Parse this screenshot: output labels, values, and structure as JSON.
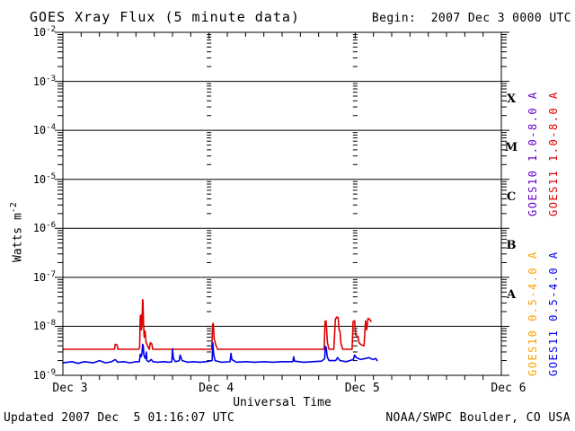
{
  "title": "GOES Xray Flux (5 minute data)",
  "begin_label": "Begin:  2007 Dec 3 0000 UTC",
  "footer": {
    "updated": "Updated 2007 Dec  5 01:16:07 UTC",
    "source": "NOAA/SWPC Boulder, CO USA"
  },
  "axes": {
    "xlabel": "Universal Time",
    "ylabel_base": "Watts m",
    "ylabel_exp": "-2",
    "y_tick_base": "10",
    "y_exponents": [
      "-2",
      "-3",
      "-4",
      "-5",
      "-6",
      "-7",
      "-8",
      "-9"
    ]
  },
  "colors": {
    "long10": "#6600cc",
    "long11": "#dd0000",
    "short10": "#ffa000",
    "short11": "#0000ee",
    "axis": "#000000",
    "background": "#ffffff"
  },
  "legend": {
    "items": [
      {
        "label": "GOES10 1.0-8.0 A",
        "color_key": "long10",
        "column": 1,
        "group": "top"
      },
      {
        "label": "GOES11 1.0-8.0 A",
        "color_key": "long11",
        "column": 2,
        "group": "top"
      },
      {
        "label": "GOES10 0.5-4.0 A",
        "color_key": "short10",
        "column": 1,
        "group": "bottom"
      },
      {
        "label": "GOES11 0.5-4.0 A",
        "color_key": "short11",
        "column": 2,
        "group": "bottom"
      }
    ]
  },
  "chart_data": {
    "type": "line",
    "title": "GOES Xray Flux (5 minute data)",
    "x_unit": "hours since 2007 Dec 3 0000 UTC",
    "x_range_hours": [
      0,
      72
    ],
    "x_day_gridlines_hours": [
      24,
      48
    ],
    "x_minor_tick_hours": 3,
    "x_ticks": [
      {
        "label": "Dec 3",
        "hours": 0
      },
      {
        "label": "Dec 4",
        "hours": 24
      },
      {
        "label": "Dec 5",
        "hours": 48
      },
      {
        "label": "Dec 6",
        "hours": 72
      }
    ],
    "y_scale": "log10",
    "y_range_w_m2": [
      1e-09,
      0.01
    ],
    "y_unit": "Watts m^-2",
    "grid": "solid horizontal line at each decade, log-dashed vertical line at day boundaries",
    "legend_position": "right, rotated",
    "flare_classes": [
      {
        "label": "X",
        "band_w_m2": [
          0.0001,
          0.001
        ]
      },
      {
        "label": "M",
        "band_w_m2": [
          1e-05,
          0.0001
        ]
      },
      {
        "label": "C",
        "band_w_m2": [
          1e-06,
          1e-05
        ]
      },
      {
        "label": "B",
        "band_w_m2": [
          1e-07,
          1e-06
        ]
      },
      {
        "label": "A",
        "band_w_m2": [
          1e-08,
          1e-07
        ]
      }
    ],
    "series": [
      {
        "name": "GOES10 1.0-8.0 A",
        "color_key": "long10",
        "points": []
      },
      {
        "name": "GOES11 1.0-8.0 A",
        "color_key": "long11",
        "points": [
          [
            0,
            3.4e-09
          ],
          [
            4,
            3.4e-09
          ],
          [
            8.45,
            3.4e-09
          ],
          [
            8.6,
            4.3e-09
          ],
          [
            8.9,
            4.2e-09
          ],
          [
            9.05,
            3.4e-09
          ],
          [
            12.4,
            3.4e-09
          ],
          [
            12.6,
            3.6e-09
          ],
          [
            12.7,
            1.6e-08
          ],
          [
            12.8,
            1.7e-08
          ],
          [
            12.9,
            8.5e-09
          ],
          [
            13.0,
            1.05e-08
          ],
          [
            13.08,
            3.5e-08
          ],
          [
            13.15,
            3.3e-08
          ],
          [
            13.25,
            1.1e-08
          ],
          [
            13.35,
            6e-09
          ],
          [
            13.5,
            8e-09
          ],
          [
            13.65,
            4.8e-09
          ],
          [
            13.9,
            4e-09
          ],
          [
            14.2,
            3.4e-09
          ],
          [
            14.35,
            4.6e-09
          ],
          [
            14.6,
            4.4e-09
          ],
          [
            14.75,
            3.4e-09
          ],
          [
            20,
            3.4e-09
          ],
          [
            24.45,
            3.4e-09
          ],
          [
            24.6,
            1.1e-08
          ],
          [
            24.7,
            1.15e-08
          ],
          [
            24.85,
            5.5e-09
          ],
          [
            25.1,
            4.2e-09
          ],
          [
            25.4,
            3.4e-09
          ],
          [
            32,
            3.4e-09
          ],
          [
            42.9,
            3.4e-09
          ],
          [
            43.05,
            1.25e-08
          ],
          [
            43.2,
            1.3e-08
          ],
          [
            43.3,
            9e-09
          ],
          [
            43.45,
            4.6e-09
          ],
          [
            43.7,
            3.4e-09
          ],
          [
            44.5,
            3.4e-09
          ],
          [
            44.75,
            1.4e-08
          ],
          [
            45.0,
            1.55e-08
          ],
          [
            45.2,
            1.5e-08
          ],
          [
            45.35,
            8.5e-09
          ],
          [
            45.5,
            8e-09
          ],
          [
            45.65,
            4.6e-09
          ],
          [
            45.95,
            3.4e-09
          ],
          [
            47.5,
            3.4e-09
          ],
          [
            47.65,
            1.25e-08
          ],
          [
            47.9,
            1.3e-08
          ],
          [
            48.1,
            6.5e-09
          ],
          [
            48.45,
            6.3e-09
          ],
          [
            48.65,
            4.6e-09
          ],
          [
            49.0,
            4.2e-09
          ],
          [
            49.45,
            4e-09
          ],
          [
            49.7,
            1.3e-08
          ],
          [
            49.9,
            8.5e-09
          ],
          [
            50.1,
            1.45e-08
          ],
          [
            50.35,
            1.4e-08
          ],
          [
            50.6,
            1.25e-08
          ]
        ]
      },
      {
        "name": "GOES10 0.5-4.0 A",
        "color_key": "short10",
        "points": []
      },
      {
        "name": "GOES11 0.5-4.0 A",
        "color_key": "short11",
        "points": [
          [
            0,
            1.8e-09
          ],
          [
            1.5,
            1.9e-09
          ],
          [
            2.5,
            1.75e-09
          ],
          [
            3.5,
            1.9e-09
          ],
          [
            5,
            1.8e-09
          ],
          [
            6,
            2e-09
          ],
          [
            7,
            1.8e-09
          ],
          [
            8,
            1.9e-09
          ],
          [
            8.6,
            2.1e-09
          ],
          [
            9,
            1.85e-09
          ],
          [
            10,
            1.9e-09
          ],
          [
            11,
            1.8e-09
          ],
          [
            12,
            1.9e-09
          ],
          [
            12.55,
            1.9e-09
          ],
          [
            12.7,
            2.7e-09
          ],
          [
            12.85,
            2.4e-09
          ],
          [
            13.0,
            2.9e-09
          ],
          [
            13.08,
            4.3e-09
          ],
          [
            13.2,
            4e-09
          ],
          [
            13.3,
            2.6e-09
          ],
          [
            13.55,
            2.2e-09
          ],
          [
            13.7,
            3e-09
          ],
          [
            13.8,
            2e-09
          ],
          [
            14.1,
            1.9e-09
          ],
          [
            14.5,
            2.1e-09
          ],
          [
            14.8,
            1.9e-09
          ],
          [
            15.5,
            1.85e-09
          ],
          [
            16.5,
            1.9e-09
          ],
          [
            17.5,
            1.85e-09
          ],
          [
            17.9,
            1.9e-09
          ],
          [
            18.0,
            3.5e-09
          ],
          [
            18.15,
            2.2e-09
          ],
          [
            18.5,
            1.9e-09
          ],
          [
            19.1,
            2e-09
          ],
          [
            19.25,
            2.6e-09
          ],
          [
            19.4,
            2.3e-09
          ],
          [
            19.6,
            2e-09
          ],
          [
            20.5,
            1.85e-09
          ],
          [
            21.5,
            1.9e-09
          ],
          [
            22.5,
            1.85e-09
          ],
          [
            23.5,
            1.9e-09
          ],
          [
            24.5,
            2e-09
          ],
          [
            24.62,
            4.6e-09
          ],
          [
            24.75,
            2.7e-09
          ],
          [
            25.0,
            2e-09
          ],
          [
            26,
            1.85e-09
          ],
          [
            27.45,
            1.9e-09
          ],
          [
            27.6,
            2.8e-09
          ],
          [
            27.75,
            2.1e-09
          ],
          [
            28.5,
            1.85e-09
          ],
          [
            30,
            1.9e-09
          ],
          [
            31.5,
            1.85e-09
          ],
          [
            33,
            1.9e-09
          ],
          [
            34.5,
            1.85e-09
          ],
          [
            36,
            1.9e-09
          ],
          [
            37.75,
            1.9e-09
          ],
          [
            37.9,
            2.4e-09
          ],
          [
            38.05,
            1.95e-09
          ],
          [
            39.5,
            1.85e-09
          ],
          [
            41,
            1.9e-09
          ],
          [
            42.5,
            1.95e-09
          ],
          [
            43.0,
            2.2e-09
          ],
          [
            43.1,
            3.9e-09
          ],
          [
            43.25,
            3.7e-09
          ],
          [
            43.4,
            2.4e-09
          ],
          [
            43.7,
            2e-09
          ],
          [
            44.8,
            2e-09
          ],
          [
            45.1,
            2.3e-09
          ],
          [
            45.5,
            2e-09
          ],
          [
            46.5,
            1.9e-09
          ],
          [
            47.7,
            2.1e-09
          ],
          [
            47.9,
            2.6e-09
          ],
          [
            48.2,
            2.3e-09
          ],
          [
            48.9,
            2.1e-09
          ],
          [
            49.6,
            2.2e-09
          ],
          [
            50.3,
            2.3e-09
          ],
          [
            50.9,
            2.1e-09
          ],
          [
            51.4,
            2.2e-09
          ],
          [
            51.6,
            2e-09
          ]
        ]
      }
    ]
  }
}
